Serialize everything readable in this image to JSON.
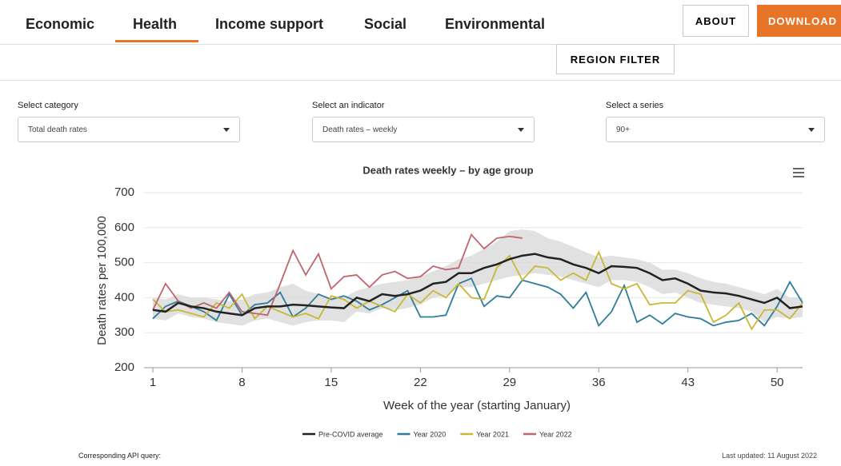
{
  "nav": {
    "tabs": [
      "Economic",
      "Health",
      "Income support",
      "Social",
      "Environmental"
    ],
    "active_tab": 1,
    "about": "ABOUT",
    "download": "DOWNLOAD",
    "region_filter": "REGION FILTER"
  },
  "filters": [
    {
      "label": "Select category",
      "value": "Total death rates"
    },
    {
      "label": "Select an indicator",
      "value": "Death rates – weekly"
    },
    {
      "label": "Select a series",
      "value": "90+"
    }
  ],
  "footer": {
    "api": "Corresponding API query:",
    "updated": "Last updated: 11 August 2022"
  },
  "chart_data": {
    "type": "line",
    "title": "Death rates weekly – by age group",
    "y_label": "Death rates per 100,000",
    "x_label": "Week of the year (starting January)",
    "x": [
      1,
      2,
      3,
      4,
      5,
      6,
      7,
      8,
      9,
      10,
      11,
      12,
      13,
      14,
      15,
      16,
      17,
      18,
      19,
      20,
      21,
      22,
      23,
      24,
      25,
      26,
      27,
      28,
      29,
      30,
      31,
      32,
      33,
      34,
      35,
      36,
      37,
      38,
      39,
      40,
      41,
      42,
      43,
      44,
      45,
      46,
      47,
      48,
      49,
      50,
      51,
      52
    ],
    "xlim": [
      1,
      52
    ],
    "xticks": [
      1,
      8,
      15,
      22,
      29,
      36,
      43,
      50
    ],
    "ylim": [
      200,
      700
    ],
    "yticks": [
      200,
      300,
      400,
      500,
      600,
      700
    ],
    "grid": true,
    "band": {
      "color": "#d9d9d9",
      "upper": [
        400,
        395,
        410,
        400,
        400,
        395,
        390,
        395,
        410,
        415,
        430,
        440,
        420,
        410,
        400,
        400,
        420,
        430,
        440,
        445,
        450,
        460,
        475,
        490,
        510,
        520,
        540,
        560,
        590,
        595,
        590,
        570,
        560,
        545,
        530,
        515,
        520,
        515,
        510,
        500,
        480,
        480,
        470,
        455,
        445,
        440,
        430,
        420,
        410,
        425,
        400,
        400
      ],
      "lower": [
        340,
        335,
        355,
        345,
        340,
        330,
        325,
        320,
        335,
        340,
        330,
        320,
        330,
        335,
        335,
        330,
        360,
        355,
        370,
        365,
        370,
        380,
        400,
        405,
        430,
        430,
        440,
        450,
        460,
        465,
        470,
        465,
        460,
        450,
        440,
        430,
        450,
        450,
        445,
        430,
        410,
        415,
        400,
        385,
        380,
        375,
        370,
        360,
        330,
        345,
        340,
        345
      ]
    },
    "series": [
      {
        "name": "Pre-COVID average",
        "color": "#222222",
        "values": [
          365,
          360,
          385,
          375,
          370,
          360,
          355,
          350,
          370,
          375,
          375,
          380,
          378,
          375,
          372,
          370,
          400,
          390,
          410,
          405,
          410,
          420,
          440,
          445,
          470,
          470,
          485,
          495,
          510,
          520,
          525,
          515,
          510,
          495,
          485,
          470,
          490,
          488,
          485,
          470,
          450,
          455,
          440,
          420,
          415,
          412,
          405,
          395,
          385,
          400,
          370,
          375
        ]
      },
      {
        "name": "Year 2020",
        "color": "#2e7d9a",
        "values": [
          340,
          375,
          390,
          375,
          360,
          335,
          410,
          350,
          380,
          385,
          415,
          345,
          370,
          410,
          395,
          405,
          390,
          365,
          380,
          400,
          420,
          345,
          345,
          350,
          440,
          455,
          375,
          405,
          400,
          450,
          440,
          430,
          410,
          370,
          415,
          320,
          360,
          435,
          330,
          350,
          325,
          355,
          345,
          340,
          320,
          330,
          335,
          355,
          320,
          375,
          445,
          385
        ]
      },
      {
        "name": "Year 2021",
        "color": "#c9b835",
        "values": [
          395,
          360,
          365,
          355,
          345,
          385,
          370,
          410,
          340,
          375,
          360,
          345,
          355,
          340,
          405,
          395,
          370,
          390,
          375,
          360,
          410,
          385,
          420,
          400,
          440,
          400,
          395,
          485,
          520,
          450,
          490,
          485,
          450,
          470,
          450,
          530,
          440,
          425,
          440,
          380,
          385,
          385,
          420,
          410,
          330,
          350,
          385,
          310,
          365,
          365,
          340,
          385
        ]
      },
      {
        "name": "Year 2022",
        "color": "#c0646e",
        "values": [
          365,
          440,
          390,
          370,
          385,
          370,
          415,
          360,
          355,
          350,
          440,
          535,
          465,
          525,
          425,
          460,
          465,
          430,
          465,
          475,
          455,
          460,
          490,
          480,
          485,
          580,
          540,
          570,
          575,
          570,
          null,
          null,
          null,
          null,
          null,
          null,
          null,
          null,
          null,
          null,
          null,
          null,
          null,
          null,
          null,
          null,
          null,
          null,
          null,
          null,
          null,
          null
        ]
      }
    ]
  }
}
